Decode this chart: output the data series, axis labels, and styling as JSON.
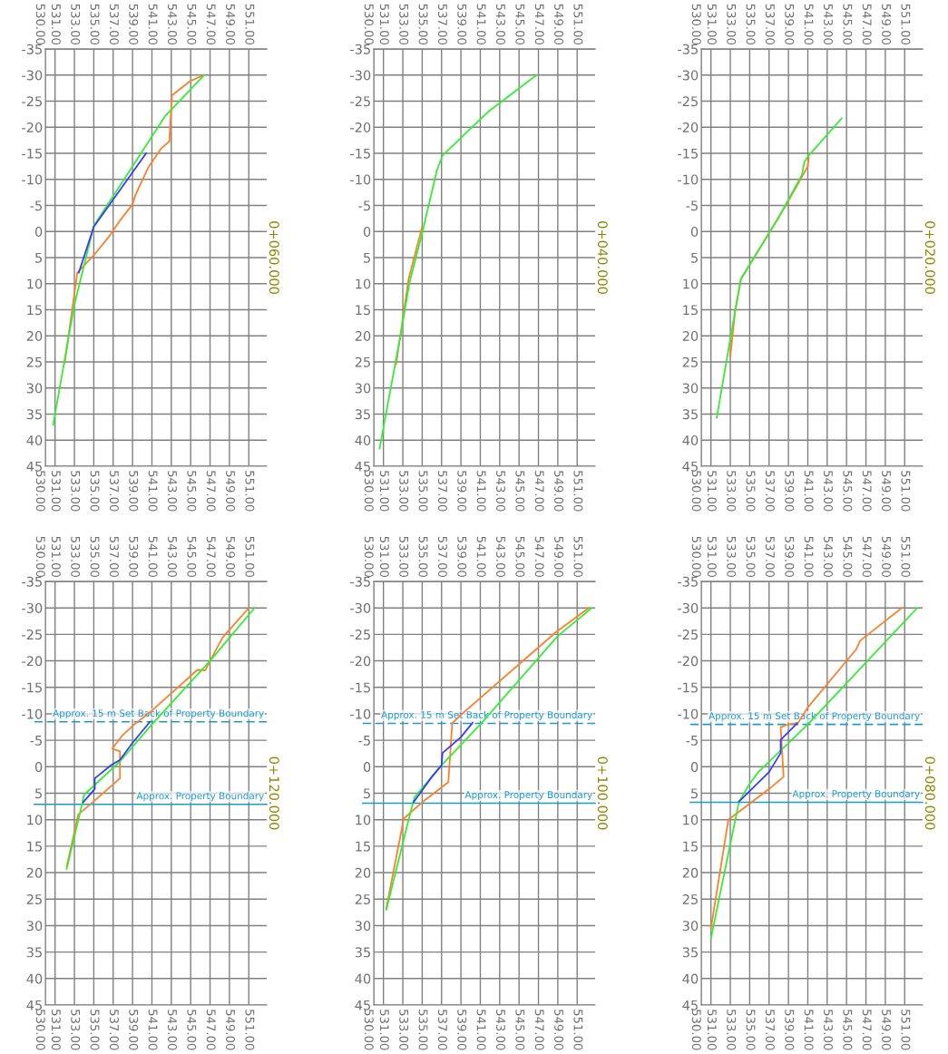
{
  "chart_data": [
    {
      "type": "line",
      "title": "0+060.000",
      "xlim": [
        530,
        552.85
      ],
      "x2lim": [
        530,
        552.85
      ],
      "ylim": [
        45,
        -35
      ],
      "xticks": [
        {
          "value": 530,
          "label": "530.00"
        },
        {
          "value": 531,
          "label": "531.00"
        },
        {
          "value": 533,
          "label": "533.00"
        },
        {
          "value": 535,
          "label": "535.00"
        },
        {
          "value": 537,
          "label": "537.00"
        },
        {
          "value": 539,
          "label": "539.00"
        },
        {
          "value": 541,
          "label": "541.00"
        },
        {
          "value": 543,
          "label": "543.00"
        },
        {
          "value": 545,
          "label": "545.00"
        },
        {
          "value": 547,
          "label": "547.00"
        },
        {
          "value": 549,
          "label": "549.00"
        },
        {
          "value": 551,
          "label": "551.00"
        }
      ],
      "x2ticks": [
        {
          "value": 530,
          "label": "530.00"
        },
        {
          "value": 531,
          "label": "531.00"
        },
        {
          "value": 533,
          "label": "533.00"
        },
        {
          "value": 535,
          "label": "535.00"
        },
        {
          "value": 537,
          "label": "537.00"
        },
        {
          "value": 539,
          "label": "539.00"
        },
        {
          "value": 541,
          "label": "541.00"
        },
        {
          "value": 543,
          "label": "543.00"
        },
        {
          "value": 545,
          "label": "545.00"
        },
        {
          "value": 547,
          "label": "547.00"
        },
        {
          "value": 549,
          "label": "549.00"
        },
        {
          "value": 551,
          "label": "551.00"
        }
      ],
      "yticks": [
        -35,
        -30,
        -25,
        -20,
        -15,
        -10,
        -5,
        0,
        5,
        10,
        15,
        20,
        25,
        30,
        35,
        40,
        45
      ],
      "grid": true,
      "legend": false,
      "marker": "none",
      "line_style": "solid",
      "series": [
        {
          "color": "#ff7f2a",
          "x": [
            546.4,
            545.0,
            543.06,
            542.8,
            541.9,
            540.6,
            539.3,
            539.0,
            537.7,
            536.6,
            534.97,
            533.3,
            532.0
          ],
          "values": [
            -30,
            -28.9,
            -26.1,
            -17.3,
            -15.8,
            -12.2,
            -7.0,
            -5.2,
            -2.1,
            0.9,
            4.6,
            7.9,
            25.2
          ]
        },
        {
          "color": "#33ee33",
          "x": [
            530.8,
            533.0,
            535.0,
            542.4,
            546.4
          ],
          "values": [
            37.1,
            14,
            -1.1,
            -22.2,
            -30
          ]
        },
        {
          "color": "#3a3aff",
          "x": [
            540.4,
            535.0,
            533.45
          ],
          "values": [
            -15.0,
            -0.9,
            7.9
          ]
        }
      ]
    },
    {
      "type": "line",
      "title": "0+040.000",
      "xlim": [
        530,
        552.85
      ],
      "x2lim": [
        530,
        552.85
      ],
      "ylim": [
        45,
        -35
      ],
      "xticks": [
        {
          "value": 530,
          "label": "530.00"
        },
        {
          "value": 531,
          "label": "531.00"
        },
        {
          "value": 533,
          "label": "533.00"
        },
        {
          "value": 535,
          "label": "535.00"
        },
        {
          "value": 537,
          "label": "537.00"
        },
        {
          "value": 539,
          "label": "539.00"
        },
        {
          "value": 541,
          "label": "541.00"
        },
        {
          "value": 543,
          "label": "543.00"
        },
        {
          "value": 545,
          "label": "545.00"
        },
        {
          "value": 547,
          "label": "547.00"
        },
        {
          "value": 549,
          "label": "549.00"
        },
        {
          "value": 551,
          "label": "551.00"
        }
      ],
      "x2ticks": [
        {
          "value": 530,
          "label": "530.00"
        },
        {
          "value": 531,
          "label": "531.00"
        },
        {
          "value": 533,
          "label": "533.00"
        },
        {
          "value": 535,
          "label": "535.00"
        },
        {
          "value": 537,
          "label": "537.00"
        },
        {
          "value": 539,
          "label": "539.00"
        },
        {
          "value": 541,
          "label": "541.00"
        },
        {
          "value": 543,
          "label": "543.00"
        },
        {
          "value": 545,
          "label": "545.00"
        },
        {
          "value": 547,
          "label": "547.00"
        },
        {
          "value": 549,
          "label": "549.00"
        },
        {
          "value": 551,
          "label": "551.00"
        }
      ],
      "yticks": [
        -35,
        -30,
        -25,
        -20,
        -15,
        -10,
        -5,
        0,
        5,
        10,
        15,
        20,
        25,
        30,
        35,
        40,
        45
      ],
      "grid": true,
      "legend": false,
      "marker": "none",
      "line_style": "solid",
      "series": [
        {
          "color": "#ff7f2a",
          "x": [
            535.0,
            534.1,
            533.6,
            532.3
          ],
          "values": [
            -0.9,
            5.5,
            9.1,
            25.5
          ]
        },
        {
          "color": "#33ee33",
          "x": [
            546.8,
            541.9,
            537.1,
            536.5,
            535.0,
            533.7,
            532.8,
            530.6
          ],
          "values": [
            -30,
            -23.1,
            -14.6,
            -11.6,
            0.3,
            9.7,
            19.5,
            41.6
          ]
        }
      ]
    },
    {
      "type": "line",
      "title": "0+020.000",
      "xlim": [
        530,
        552.85
      ],
      "x2lim": [
        530,
        552.85
      ],
      "ylim": [
        45,
        -35
      ],
      "xticks": [
        {
          "value": 530,
          "label": "530.00"
        },
        {
          "value": 531,
          "label": "531.00"
        },
        {
          "value": 533,
          "label": "533.00"
        },
        {
          "value": 535,
          "label": "535.00"
        },
        {
          "value": 537,
          "label": "537.00"
        },
        {
          "value": 539,
          "label": "539.00"
        },
        {
          "value": 541,
          "label": "541.00"
        },
        {
          "value": 543,
          "label": "543.00"
        },
        {
          "value": 545,
          "label": "545.00"
        },
        {
          "value": 547,
          "label": "547.00"
        },
        {
          "value": 549,
          "label": "549.00"
        },
        {
          "value": 551,
          "label": "551.00"
        }
      ],
      "x2ticks": [
        {
          "value": 530,
          "label": "530.00"
        },
        {
          "value": 531,
          "label": "531.00"
        },
        {
          "value": 533,
          "label": "533.00"
        },
        {
          "value": 535,
          "label": "535.00"
        },
        {
          "value": 537,
          "label": "537.00"
        },
        {
          "value": 539,
          "label": "539.00"
        },
        {
          "value": 541,
          "label": "541.00"
        },
        {
          "value": 543,
          "label": "543.00"
        },
        {
          "value": 545,
          "label": "545.00"
        },
        {
          "value": 547,
          "label": "547.00"
        },
        {
          "value": 549,
          "label": "549.00"
        },
        {
          "value": 551,
          "label": "551.00"
        }
      ],
      "yticks": [
        -35,
        -30,
        -25,
        -20,
        -15,
        -10,
        -5,
        0,
        5,
        10,
        15,
        20,
        25,
        30,
        35,
        40,
        45
      ],
      "grid": true,
      "legend": false,
      "marker": "none",
      "line_style": "solid",
      "series": [
        {
          "color": "#ff7f2a",
          "x": [
            541.1,
            541.0,
            538.7,
            537.0,
            534.1,
            533.5,
            533.0
          ],
          "values": [
            -14.2,
            -12.5,
            -4.9,
            0.3,
            9.1,
            15.2,
            24.0
          ]
        },
        {
          "color": "#33ee33",
          "x": [
            544.5,
            541.1,
            540.65,
            540.4,
            537.9,
            537.0,
            534.1,
            533.5,
            531.6
          ],
          "values": [
            -21.7,
            -14.6,
            -13.4,
            -10.9,
            -2.4,
            0.3,
            9.1,
            15.2,
            35.7
          ]
        }
      ]
    },
    {
      "type": "line",
      "title": "0+120.000",
      "xlim": [
        530,
        552.85
      ],
      "x2lim": [
        530,
        552.85
      ],
      "ylim": [
        45,
        -35
      ],
      "xticks": [
        {
          "value": 530,
          "label": "530.00"
        },
        {
          "value": 531,
          "label": "531.00"
        },
        {
          "value": 533,
          "label": "533.00"
        },
        {
          "value": 535,
          "label": "535.00"
        },
        {
          "value": 537,
          "label": "537.00"
        },
        {
          "value": 539,
          "label": "539.00"
        },
        {
          "value": 541,
          "label": "541.00"
        },
        {
          "value": 543,
          "label": "543.00"
        },
        {
          "value": 545,
          "label": "545.00"
        },
        {
          "value": 547,
          "label": "547.00"
        },
        {
          "value": 549,
          "label": "549.00"
        },
        {
          "value": 551,
          "label": "551.00"
        }
      ],
      "x2ticks": [
        {
          "value": 530,
          "label": "530.00"
        },
        {
          "value": 531,
          "label": "531.00"
        },
        {
          "value": 533,
          "label": "533.00"
        },
        {
          "value": 535,
          "label": "535.00"
        },
        {
          "value": 537,
          "label": "537.00"
        },
        {
          "value": 539,
          "label": "539.00"
        },
        {
          "value": 541,
          "label": "541.00"
        },
        {
          "value": 543,
          "label": "543.00"
        },
        {
          "value": 545,
          "label": "545.00"
        },
        {
          "value": 547,
          "label": "547.00"
        },
        {
          "value": 549,
          "label": "549.00"
        },
        {
          "value": 551,
          "label": "551.00"
        }
      ],
      "yticks": [
        -35,
        -30,
        -25,
        -20,
        -15,
        -10,
        -5,
        0,
        5,
        10,
        15,
        20,
        25,
        30,
        35,
        40,
        45
      ],
      "grid": true,
      "legend": false,
      "marker": "none",
      "line_style": "solid",
      "ref_lines": [
        {
          "axis": "y",
          "value": -8.5,
          "label": "Approx. 15 m Set Back of Property Boundary",
          "color": "#1a9bd0",
          "line_style": "dashed"
        },
        {
          "axis": "y",
          "value": 7.1,
          "label": "Approx. Property Boundary",
          "color": "#1a9bd0",
          "line_style": "solid"
        }
      ],
      "series": [
        {
          "color": "#ff7f2a",
          "x": [
            551.0,
            548.3,
            547.0,
            546.5,
            545.7,
            541.0,
            539.0,
            537.9,
            536.9,
            537.7,
            537.7,
            534.9,
            533.4,
            532.2
          ],
          "values": [
            -30,
            -24.4,
            -20,
            -18.2,
            -18.3,
            -10.6,
            -7.7,
            -5.8,
            -3.4,
            -2.9,
            2.2,
            6.7,
            9.0,
            18.9
          ]
        },
        {
          "color": "#33ee33",
          "x": [
            551.6,
            547.0,
            541.0,
            537.7,
            534.0,
            533.5,
            532.2
          ],
          "values": [
            -30,
            -20.0,
            -8.0,
            -1.0,
            5.3,
            9.3,
            19.3
          ]
        },
        {
          "color": "#3a3aff",
          "x": [
            540.8,
            539.0,
            537.7,
            536.8,
            535.1,
            535.1,
            533.9
          ],
          "values": [
            -8.5,
            -4.5,
            -1.3,
            -0.3,
            2.2,
            4.2,
            6.7
          ]
        }
      ]
    },
    {
      "type": "line",
      "title": "0+100.000",
      "xlim": [
        530,
        552.85
      ],
      "x2lim": [
        530,
        552.85
      ],
      "ylim": [
        45,
        -35
      ],
      "xticks": [
        {
          "value": 530,
          "label": "530.00"
        },
        {
          "value": 531,
          "label": "531.00"
        },
        {
          "value": 533,
          "label": "533.00"
        },
        {
          "value": 535,
          "label": "535.00"
        },
        {
          "value": 537,
          "label": "537.00"
        },
        {
          "value": 539,
          "label": "539.00"
        },
        {
          "value": 541,
          "label": "541.00"
        },
        {
          "value": 543,
          "label": "543.00"
        },
        {
          "value": 545,
          "label": "545.00"
        },
        {
          "value": 547,
          "label": "547.00"
        },
        {
          "value": 549,
          "label": "549.00"
        },
        {
          "value": 551,
          "label": "551.00"
        }
      ],
      "x2ticks": [
        {
          "value": 530,
          "label": "530.00"
        },
        {
          "value": 531,
          "label": "531.00"
        },
        {
          "value": 533,
          "label": "533.00"
        },
        {
          "value": 535,
          "label": "535.00"
        },
        {
          "value": 537,
          "label": "537.00"
        },
        {
          "value": 539,
          "label": "539.00"
        },
        {
          "value": 541,
          "label": "541.00"
        },
        {
          "value": 543,
          "label": "543.00"
        },
        {
          "value": 545,
          "label": "545.00"
        },
        {
          "value": 547,
          "label": "547.00"
        },
        {
          "value": 549,
          "label": "549.00"
        },
        {
          "value": 551,
          "label": "551.00"
        }
      ],
      "yticks": [
        -35,
        -30,
        -25,
        -20,
        -15,
        -10,
        -5,
        0,
        5,
        10,
        15,
        20,
        25,
        30,
        35,
        40,
        45
      ],
      "grid": true,
      "legend": false,
      "marker": "none",
      "line_style": "solid",
      "ref_lines": [
        {
          "axis": "y",
          "value": -8.2,
          "label": "Approx. 15 m Set Back of Property Boundary",
          "color": "#1a9bd0",
          "line_style": "dashed"
        },
        {
          "axis": "y",
          "value": 6.9,
          "label": "Approx. Property Boundary",
          "color": "#1a9bd0",
          "line_style": "solid"
        }
      ],
      "series": [
        {
          "color": "#ff7f2a",
          "x": [
            552.2,
            548.8,
            539.0,
            538.1,
            537.7,
            535.0,
            533.1,
            531.3
          ],
          "values": [
            -30,
            -25.4,
            -9.8,
            -8.2,
            2.9,
            6.7,
            9.8,
            26.7
          ]
        },
        {
          "color": "#33ee33",
          "x": [
            552.5,
            549.0,
            541.0,
            537.0,
            534.2,
            533.7,
            531.3
          ],
          "values": [
            -30,
            -24.7,
            -8.0,
            -0.3,
            5.8,
            9.3,
            27.0
          ]
        },
        {
          "color": "#3a3aff",
          "x": [
            540.2,
            539.0,
            537.1,
            537.0,
            536.0,
            534.1
          ],
          "values": [
            -8.3,
            -5.6,
            -2.6,
            -0.3,
            1.9,
            6.7
          ]
        }
      ]
    },
    {
      "type": "line",
      "title": "0+080.000",
      "xlim": [
        530,
        552.85
      ],
      "x2lim": [
        530,
        552.85
      ],
      "ylim": [
        45,
        -35
      ],
      "xticks": [
        {
          "value": 530,
          "label": "530.00"
        },
        {
          "value": 531,
          "label": "531.00"
        },
        {
          "value": 533,
          "label": "533.00"
        },
        {
          "value": 535,
          "label": "535.00"
        },
        {
          "value": 537,
          "label": "537.00"
        },
        {
          "value": 539,
          "label": "539.00"
        },
        {
          "value": 541,
          "label": "541.00"
        },
        {
          "value": 543,
          "label": "543.00"
        },
        {
          "value": 545,
          "label": "545.00"
        },
        {
          "value": 547,
          "label": "547.00"
        },
        {
          "value": 549,
          "label": "549.00"
        },
        {
          "value": 551,
          "label": "551.00"
        }
      ],
      "x2ticks": [
        {
          "value": 530,
          "label": "530.00"
        },
        {
          "value": 531,
          "label": "531.00"
        },
        {
          "value": 533,
          "label": "533.00"
        },
        {
          "value": 535,
          "label": "535.00"
        },
        {
          "value": 537,
          "label": "537.00"
        },
        {
          "value": 539,
          "label": "539.00"
        },
        {
          "value": 541,
          "label": "541.00"
        },
        {
          "value": 543,
          "label": "543.00"
        },
        {
          "value": 545,
          "label": "545.00"
        },
        {
          "value": 547,
          "label": "547.00"
        },
        {
          "value": 549,
          "label": "549.00"
        },
        {
          "value": 551,
          "label": "551.00"
        }
      ],
      "yticks": [
        -35,
        -30,
        -25,
        -20,
        -15,
        -10,
        -5,
        0,
        5,
        10,
        15,
        20,
        25,
        30,
        35,
        40,
        45
      ],
      "grid": true,
      "legend": false,
      "marker": "none",
      "line_style": "solid",
      "ref_lines": [
        {
          "axis": "y",
          "value": -8.0,
          "label": "Approx. 15 m Set Back of Property Boundary",
          "color": "#1a9bd0",
          "line_style": "dashed"
        },
        {
          "axis": "y",
          "value": 6.7,
          "label": "Approx. Property Boundary",
          "color": "#1a9bd0",
          "line_style": "solid"
        }
      ],
      "series": [
        {
          "color": "#ff7f2a",
          "x": [
            550.7,
            546.4,
            546.0,
            541.0,
            540.0,
            539.0,
            538.2,
            538.5,
            537.0,
            532.8,
            531.0
          ],
          "values": [
            -30,
            -23.8,
            -22.2,
            -11.2,
            -8.3,
            -8.0,
            -7.5,
            1.9,
            4.2,
            10.0,
            30.5
          ]
        },
        {
          "color": "#33ee33",
          "x": [
            552.3,
            541.0,
            535.9,
            535.0,
            533.9,
            531.0
          ],
          "values": [
            -30,
            -8.0,
            1.0,
            3.2,
            6.6,
            32.4
          ]
        },
        {
          "color": "#3a3aff",
          "x": [
            539.9,
            538.2,
            538.2,
            537.0,
            533.9
          ],
          "values": [
            -8.2,
            -5.1,
            -2.6,
            1.0,
            6.6
          ]
        }
      ]
    }
  ]
}
